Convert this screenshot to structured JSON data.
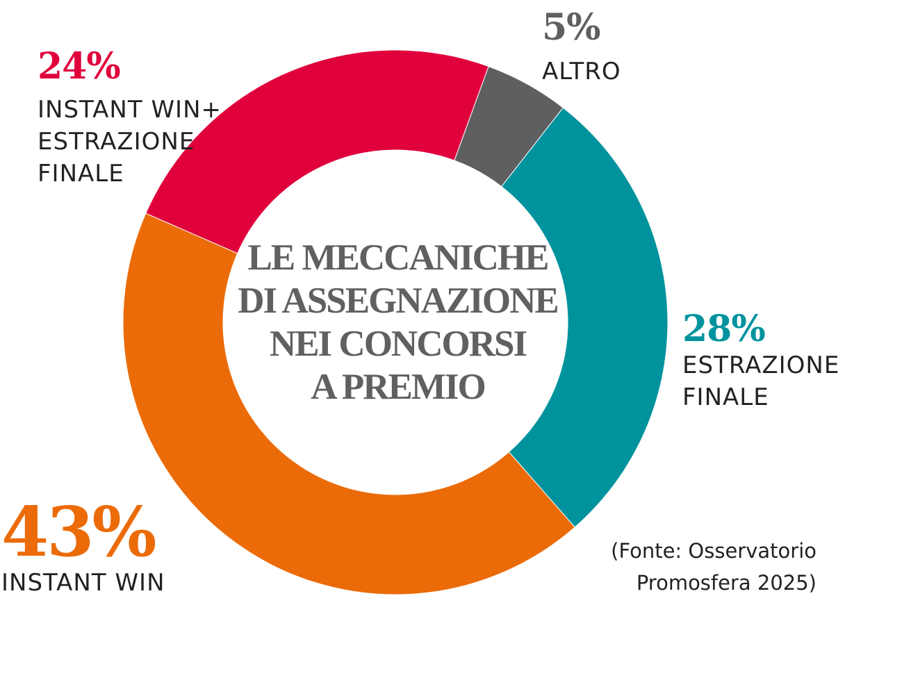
{
  "chart_data": {
    "type": "pie",
    "title": [
      "LE MECCANICHE",
      "DI ASSEGNAZIONE",
      "NEI CONCORSI",
      "A PREMIO"
    ],
    "slices": [
      {
        "key": "altro",
        "value": 5,
        "value_label": "5%",
        "label": [
          "ALTRO"
        ],
        "color": "#5d5f61"
      },
      {
        "key": "estrazione-finale",
        "value": 28,
        "value_label": "28%",
        "label": [
          "ESTRAZIONE",
          "FINALE"
        ],
        "color": "#00939e"
      },
      {
        "key": "instant-win",
        "value": 43,
        "value_label": "43%",
        "label": [
          "INSTANT WIN"
        ],
        "color": "#eb6b08"
      },
      {
        "key": "instant-win-estrazione",
        "value": 24,
        "value_label": "24%",
        "label": [
          "INSTANT WIN+",
          "ESTRAZIONE",
          "FINALE"
        ],
        "color": "#e0003c"
      }
    ],
    "source": [
      "(Fonte: Osservatorio",
      "Promosfera 2025)"
    ]
  }
}
